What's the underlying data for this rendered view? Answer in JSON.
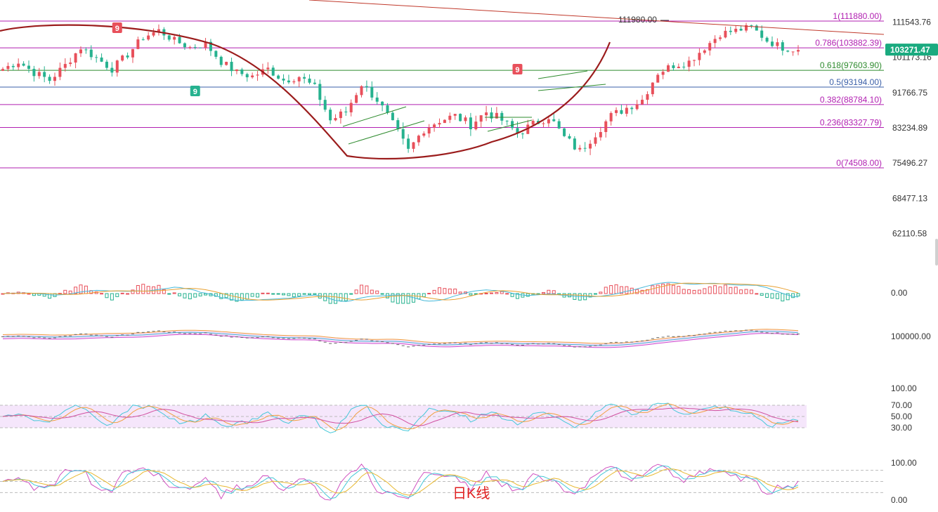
{
  "caption": "日K线",
  "price_tag": {
    "label": "103271.47",
    "value": 103271.47,
    "color": "#1aaa7f"
  },
  "peak_annotation": {
    "label": "111980.00",
    "value": 111980.0
  },
  "colors": {
    "up": "#e8505b",
    "down": "#26b28f",
    "fib_line": "#b11fb1",
    "fib_618": "#2e8b2e",
    "fib_05": "#3a5fa8",
    "curve": "#9b1c1c",
    "channel": "#2e8b2e",
    "boll_fill": "#f3ccf3"
  },
  "chart_data": [
    {
      "type": "candlestick",
      "panel": "price",
      "title": "",
      "y_ticks": [
        "111543.76",
        "101173.16",
        "91766.75",
        "83234.89",
        "75496.27",
        "68477.13",
        "62110.58"
      ],
      "y_tick_values": [
        111543.76,
        101173.16,
        91766.75,
        83234.89,
        75496.27,
        68477.13,
        62110.58
      ],
      "fib_levels": [
        {
          "label": "1(111880.00)",
          "ratio": 1,
          "value": 111880.0
        },
        {
          "label": "0.786(103882.39)",
          "ratio": 0.786,
          "value": 103882.39
        },
        {
          "label": "0.618(97603.90)",
          "ratio": 0.618,
          "value": 97603.9
        },
        {
          "label": "0.5(93194.00)",
          "ratio": 0.5,
          "value": 93194.0
        },
        {
          "label": "0.382(88784.10)",
          "ratio": 0.382,
          "value": 88784.1
        },
        {
          "label": "0.236(83327.79)",
          "ratio": 0.236,
          "value": 83327.79
        },
        {
          "label": "0(74508.00)",
          "ratio": 0,
          "value": 74508.0
        }
      ],
      "td_markers": [
        {
          "label": "9",
          "index": 22,
          "color": "#e8505b"
        },
        {
          "label": "9",
          "index": 37,
          "color": "#26b28f"
        },
        {
          "label": "9",
          "index": 99,
          "color": "#e8505b"
        }
      ],
      "close_path": [
        98000,
        100000,
        97000,
        95000,
        99000,
        104000,
        101000,
        98000,
        102000,
        107000,
        109000,
        106000,
        104000,
        105000,
        100000,
        97000,
        96000,
        98000,
        95000,
        96000,
        93000,
        85000,
        87000,
        94000,
        90000,
        84000,
        78000,
        83000,
        85000,
        86000,
        84000,
        87000,
        85000,
        82000,
        84000,
        86000,
        81000,
        78000,
        82000,
        86000,
        88000,
        90000,
        97000,
        99000,
        100000,
        104000,
        108000,
        109000,
        110000,
        106000,
        104000,
        103271.47
      ],
      "points_per_segment": 3
    },
    {
      "type": "bar",
      "panel": "macd",
      "title": "",
      "y_ticks": [
        "0.00"
      ],
      "y_tick_values": [
        0
      ]
    },
    {
      "type": "line",
      "panel": "boll",
      "title": "",
      "y_ticks": [
        "100000.00"
      ],
      "y_tick_values": [
        100000
      ]
    },
    {
      "type": "line",
      "panel": "rsi",
      "title": "",
      "y_ticks": [
        "100.00",
        "70.00",
        "50.00",
        "30.00"
      ],
      "y_tick_values": [
        100,
        70,
        50,
        30
      ],
      "band": [
        30,
        70
      ]
    },
    {
      "type": "line",
      "panel": "kdj",
      "title": "",
      "y_ticks": [
        "100.00",
        "0.00"
      ],
      "y_tick_values": [
        100,
        0
      ]
    }
  ]
}
